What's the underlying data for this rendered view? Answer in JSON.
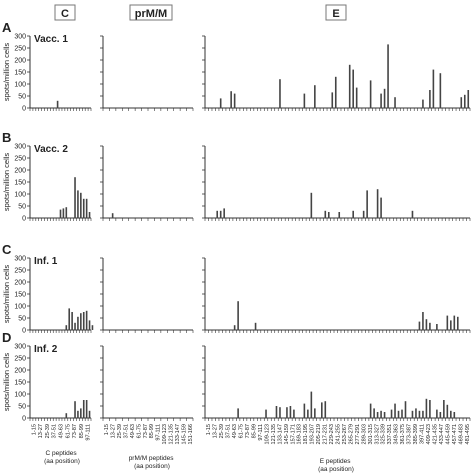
{
  "figure": {
    "column_headers": [
      "C",
      "prM/M",
      "E"
    ],
    "axis_titles": {
      "y": "spots/million cells",
      "x": [
        "C peptides\n(aa position)",
        "prM/M peptides\n(aa position)",
        "E peptides\n(aa position)"
      ]
    }
  },
  "chart_data": [
    {
      "type": "bar",
      "panel_label": "A",
      "row_title": "Vacc. 1",
      "ylabel": "spots/million cells",
      "ylim": [
        0,
        300
      ],
      "yticks": [
        0,
        50,
        100,
        150,
        200,
        250,
        300
      ],
      "series": [
        {
          "segment": "C",
          "positions": [
            9
          ],
          "values": [
            30
          ]
        },
        {
          "segment": "prM/M",
          "positions": [],
          "values": []
        },
        {
          "segment": "E",
          "positions": [
            4,
            7,
            8,
            21,
            28,
            31,
            36,
            37,
            41,
            42,
            43,
            47,
            50,
            51,
            52,
            54,
            62,
            64,
            65,
            67,
            73,
            74,
            75
          ],
          "values": [
            40,
            70,
            60,
            120,
            60,
            95,
            65,
            130,
            180,
            160,
            85,
            115,
            60,
            80,
            265,
            45,
            35,
            75,
            160,
            145,
            45,
            55,
            75
          ]
        }
      ]
    },
    {
      "type": "bar",
      "panel_label": "B",
      "row_title": "Vacc. 2",
      "ylabel": "spots/million cells",
      "ylim": [
        0,
        300
      ],
      "yticks": [
        0,
        50,
        100,
        150,
        200,
        250,
        300
      ],
      "series": [
        {
          "segment": "C",
          "positions": [
            10,
            11,
            12,
            15,
            16,
            17,
            18,
            19,
            20
          ],
          "values": [
            35,
            40,
            45,
            170,
            115,
            105,
            80,
            80,
            25
          ]
        },
        {
          "segment": "prM/M",
          "positions": [
            1
          ],
          "values": [
            20
          ]
        },
        {
          "segment": "E",
          "positions": [
            3,
            4,
            5,
            30,
            34,
            35,
            38,
            42,
            45,
            46,
            49,
            50,
            59
          ],
          "values": [
            30,
            30,
            40,
            105,
            30,
            25,
            25,
            30,
            30,
            115,
            120,
            85,
            30
          ]
        }
      ]
    },
    {
      "type": "bar",
      "panel_label": "C",
      "row_title": "Inf. 1",
      "ylabel": "spots/million cells",
      "ylim": [
        0,
        300
      ],
      "yticks": [
        0,
        50,
        100,
        150,
        200,
        250,
        300
      ],
      "series": [
        {
          "segment": "C",
          "positions": [
            12,
            13,
            14,
            15,
            16,
            17,
            18,
            19,
            20,
            21
          ],
          "values": [
            20,
            90,
            75,
            30,
            55,
            70,
            75,
            80,
            40,
            20
          ]
        },
        {
          "segment": "prM/M",
          "positions": [],
          "values": []
        },
        {
          "segment": "E",
          "positions": [
            8,
            9,
            14,
            61,
            62,
            63,
            64,
            66,
            69,
            70,
            71,
            72
          ],
          "values": [
            20,
            120,
            30,
            35,
            75,
            45,
            30,
            25,
            60,
            40,
            60,
            55
          ]
        }
      ]
    },
    {
      "type": "bar",
      "panel_label": "D",
      "row_title": "Inf. 2",
      "ylabel": "spots/million cells",
      "ylim": [
        0,
        300
      ],
      "yticks": [
        0,
        50,
        100,
        150,
        200,
        250,
        300
      ],
      "series": [
        {
          "segment": "C",
          "positions": [
            12,
            15,
            16,
            17,
            18,
            19,
            20
          ],
          "values": [
            20,
            70,
            30,
            40,
            75,
            75,
            30
          ]
        },
        {
          "segment": "prM/M",
          "positions": [],
          "values": []
        },
        {
          "segment": "E",
          "positions": [
            9,
            17,
            20,
            21,
            23,
            24,
            25,
            28,
            29,
            30,
            31,
            33,
            34,
            47,
            48,
            49,
            50,
            51,
            53,
            54,
            55,
            56,
            57,
            59,
            60,
            61,
            62,
            63,
            64,
            66,
            67,
            68,
            69,
            70,
            71
          ],
          "values": [
            40,
            35,
            50,
            45,
            45,
            50,
            35,
            60,
            35,
            110,
            40,
            65,
            70,
            60,
            40,
            25,
            30,
            25,
            35,
            60,
            30,
            35,
            70,
            30,
            40,
            30,
            30,
            80,
            75,
            35,
            25,
            75,
            55,
            30,
            25
          ]
        }
      ]
    }
  ],
  "x_tick_labels": {
    "C": [
      "1-15",
      "13-27",
      "25-39",
      "37-51",
      "49-63",
      "61-75",
      "73-87",
      "85-99",
      "97-111"
    ],
    "prM/M": [
      "1-15",
      "13-27",
      "25-39",
      "37-51",
      "49-63",
      "61-75",
      "73-87",
      "85-99",
      "97-111",
      "109-123",
      "121-135",
      "133-147",
      "145-159",
      "151-166"
    ],
    "E": [
      "1-15",
      "13-27",
      "25-39",
      "37-51",
      "49-63",
      "61-75",
      "73-87",
      "85-99",
      "97-111",
      "109-123",
      "121-135",
      "133-147",
      "145-159",
      "157-171",
      "169-183",
      "181-195",
      "193-207",
      "205-219",
      "217-231",
      "229-243",
      "241-255",
      "253-267",
      "265-279",
      "277-291",
      "289-303",
      "301-315",
      "313-327",
      "325-339",
      "337-351",
      "349-363",
      "361-375",
      "373-387",
      "385-399",
      "397-411",
      "409-423",
      "421-435",
      "433-447",
      "445-459",
      "457-471",
      "469-483",
      "481-495"
    ]
  }
}
